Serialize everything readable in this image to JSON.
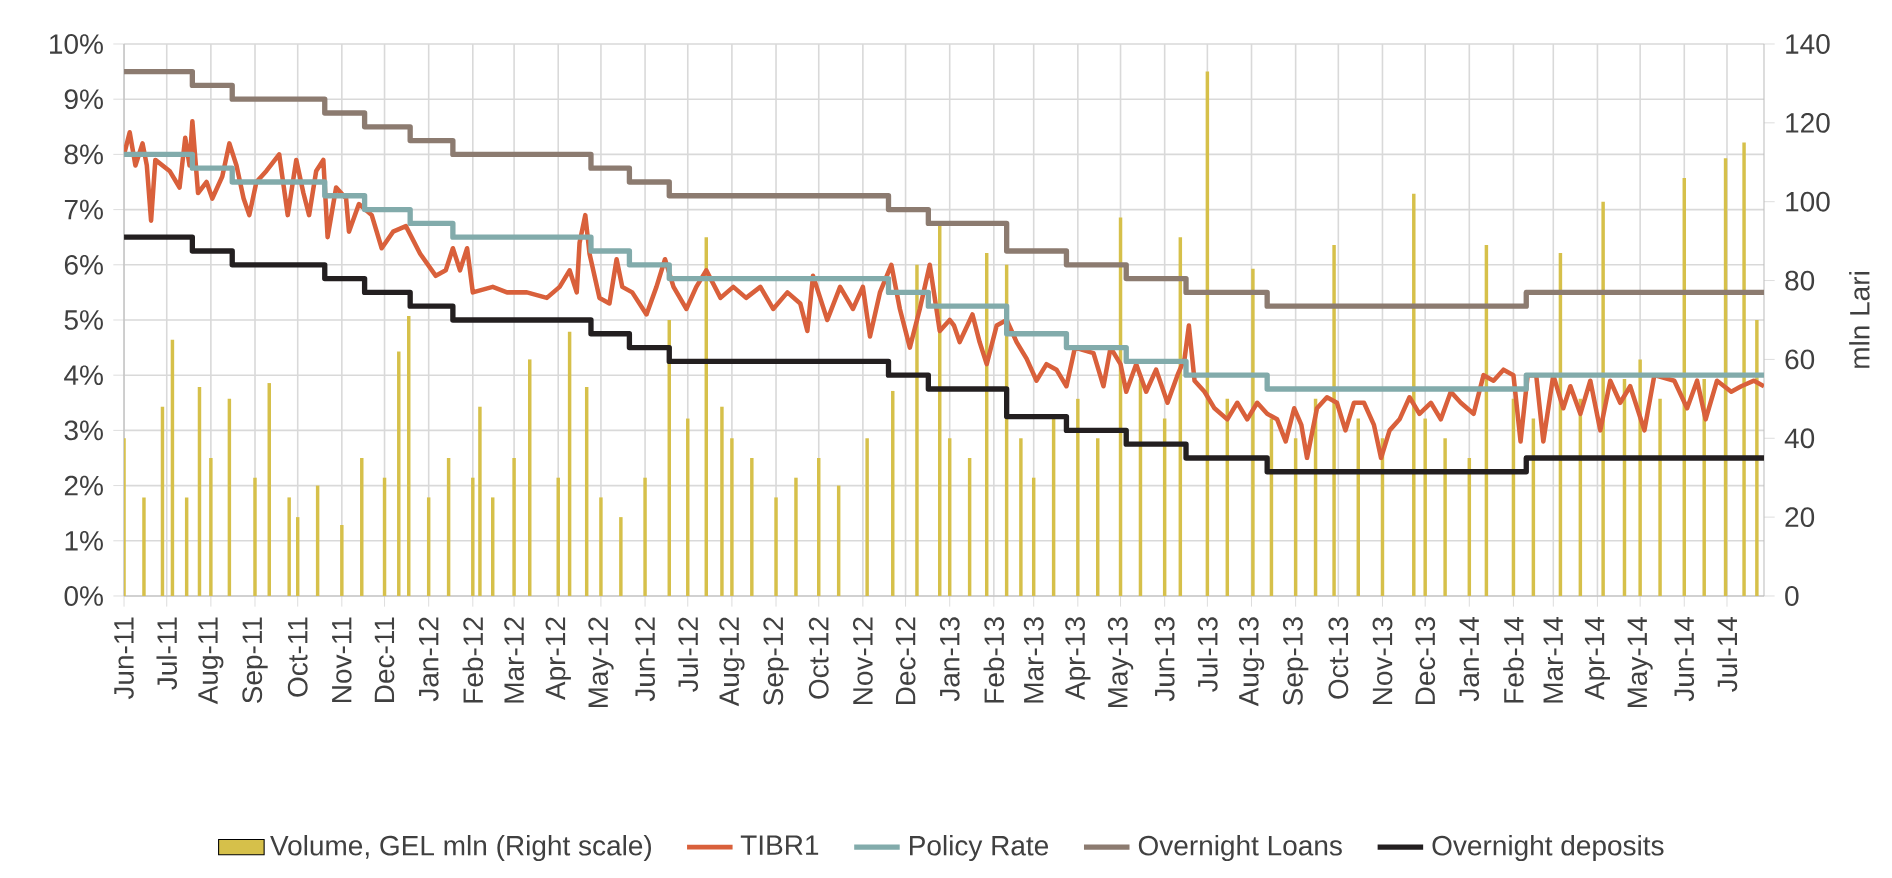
{
  "chart_data": {
    "type": "line",
    "xlim": [
      "2011-06-01",
      "2014-07-27"
    ],
    "xticks": [
      {
        "value": "2011-06-01",
        "label": "Jun-11"
      },
      {
        "value": "2011-07-01",
        "label": "Jul-11"
      },
      {
        "value": "2011-08-01",
        "label": "Aug-11"
      },
      {
        "value": "2011-09-01",
        "label": "Sep-11"
      },
      {
        "value": "2011-10-01",
        "label": "Oct-11"
      },
      {
        "value": "2011-11-01",
        "label": "Nov-11"
      },
      {
        "value": "2011-12-01",
        "label": "Dec-11"
      },
      {
        "value": "2012-01-01",
        "label": "Jan-12"
      },
      {
        "value": "2012-02-01",
        "label": "Feb-12"
      },
      {
        "value": "2012-03-01",
        "label": "Mar-12"
      },
      {
        "value": "2012-04-01",
        "label": "Apr-12"
      },
      {
        "value": "2012-05-01",
        "label": "May-12"
      },
      {
        "value": "2012-06-01",
        "label": "Jun-12"
      },
      {
        "value": "2012-07-01",
        "label": "Jul-12"
      },
      {
        "value": "2012-08-01",
        "label": "Aug-12"
      },
      {
        "value": "2012-09-01",
        "label": "Sep-12"
      },
      {
        "value": "2012-10-01",
        "label": "Oct-12"
      },
      {
        "value": "2012-11-01",
        "label": "Nov-12"
      },
      {
        "value": "2012-12-01",
        "label": "Dec-12"
      },
      {
        "value": "2013-01-01",
        "label": "Jan-13"
      },
      {
        "value": "2013-02-01",
        "label": "Feb-13"
      },
      {
        "value": "2013-03-01",
        "label": "Mar-13"
      },
      {
        "value": "2013-04-01",
        "label": "Apr-13"
      },
      {
        "value": "2013-05-01",
        "label": "May-13"
      },
      {
        "value": "2013-06-01",
        "label": "Jun-13"
      },
      {
        "value": "2013-07-01",
        "label": "Jul-13"
      },
      {
        "value": "2013-08-01",
        "label": "Aug-13"
      },
      {
        "value": "2013-09-01",
        "label": "Sep-13"
      },
      {
        "value": "2013-10-01",
        "label": "Oct-13"
      },
      {
        "value": "2013-11-01",
        "label": "Nov-13"
      },
      {
        "value": "2013-12-01",
        "label": "Dec-13"
      },
      {
        "value": "2014-01-01",
        "label": "Jan-14"
      },
      {
        "value": "2014-02-01",
        "label": "Feb-14"
      },
      {
        "value": "2014-03-01",
        "label": "Mar-14"
      },
      {
        "value": "2014-04-01",
        "label": "Apr-14"
      },
      {
        "value": "2014-05-01",
        "label": "May-14"
      },
      {
        "value": "2014-06-01",
        "label": "Jun-14"
      },
      {
        "value": "2014-07-01",
        "label": "Jul-14"
      }
    ],
    "ylim": [
      0,
      10
    ],
    "yticks": [
      {
        "value": 0,
        "label": "0%"
      },
      {
        "value": 1,
        "label": "1%"
      },
      {
        "value": 2,
        "label": "2%"
      },
      {
        "value": 3,
        "label": "3%"
      },
      {
        "value": 4,
        "label": "4%"
      },
      {
        "value": 5,
        "label": "5%"
      },
      {
        "value": 6,
        "label": "6%"
      },
      {
        "value": 7,
        "label": "7%"
      },
      {
        "value": 8,
        "label": "8%"
      },
      {
        "value": 9,
        "label": "9%"
      },
      {
        "value": 10,
        "label": "10%"
      }
    ],
    "y2lim": [
      0,
      140
    ],
    "y2ticks": [
      0,
      20,
      40,
      60,
      80,
      100,
      120,
      140
    ],
    "y2label": "mln Lari",
    "grid": true,
    "legend": "bottom",
    "marker": "none",
    "series": [
      {
        "name": "Volume, GEL mln (Right scale)",
        "type": "bar",
        "axis": "y2",
        "color": "#d6c04a",
        "x": [
          "2011-06-01",
          "2011-06-15",
          "2011-06-28",
          "2011-07-05",
          "2011-07-15",
          "2011-07-24",
          "2011-08-01",
          "2011-08-14",
          "2011-09-01",
          "2011-09-11",
          "2011-09-25",
          "2011-10-01",
          "2011-10-15",
          "2011-11-01",
          "2011-11-15",
          "2011-12-01",
          "2011-12-11",
          "2011-12-18",
          "2012-01-01",
          "2012-01-15",
          "2012-02-01",
          "2012-02-06",
          "2012-02-15",
          "2012-03-01",
          "2012-03-12",
          "2012-04-01",
          "2012-04-09",
          "2012-04-21",
          "2012-05-01",
          "2012-05-15",
          "2012-06-01",
          "2012-06-18",
          "2012-07-01",
          "2012-07-14",
          "2012-07-25",
          "2012-08-01",
          "2012-08-15",
          "2012-09-01",
          "2012-09-15",
          "2012-10-01",
          "2012-10-15",
          "2012-11-04",
          "2012-11-22",
          "2012-12-09",
          "2012-12-25",
          "2013-01-01",
          "2013-01-15",
          "2013-01-27",
          "2013-02-10",
          "2013-02-20",
          "2013-03-01",
          "2013-03-15",
          "2013-04-01",
          "2013-04-15",
          "2013-05-01",
          "2013-05-15",
          "2013-06-01",
          "2013-06-12",
          "2013-07-01",
          "2013-07-15",
          "2013-08-02",
          "2013-08-15",
          "2013-09-01",
          "2013-09-15",
          "2013-09-28",
          "2013-10-15",
          "2013-11-01",
          "2013-11-23",
          "2013-12-01",
          "2013-12-15",
          "2014-01-01",
          "2014-01-13",
          "2014-02-01",
          "2014-02-15",
          "2014-03-06",
          "2014-03-20",
          "2014-04-05",
          "2014-04-20",
          "2014-05-01",
          "2014-05-15",
          "2014-06-01",
          "2014-06-15",
          "2014-06-30",
          "2014-07-13",
          "2014-07-22"
        ],
        "values": [
          40,
          25,
          48,
          65,
          25,
          53,
          35,
          50,
          30,
          54,
          25,
          20,
          28,
          18,
          35,
          30,
          62,
          71,
          25,
          35,
          30,
          48,
          25,
          35,
          60,
          30,
          67,
          53,
          25,
          20,
          30,
          70,
          45,
          91,
          48,
          40,
          35,
          25,
          30,
          35,
          28,
          40,
          52,
          84,
          94,
          40,
          35,
          87,
          84,
          40,
          30,
          45,
          50,
          40,
          96,
          55,
          45,
          91,
          133,
          50,
          83,
          45,
          40,
          50,
          89,
          45,
          40,
          102,
          45,
          40,
          35,
          89,
          50,
          45,
          87,
          50,
          100,
          55,
          60,
          50,
          106,
          55,
          111,
          115,
          70
        ]
      },
      {
        "name": "TIBR1",
        "color": "#d9603b",
        "x": [
          "2011-06-01",
          "2011-06-05",
          "2011-06-09",
          "2011-06-14",
          "2011-06-17",
          "2011-06-20",
          "2011-06-23",
          "2011-07-03",
          "2011-07-10",
          "2011-07-14",
          "2011-07-17",
          "2011-07-19",
          "2011-07-23",
          "2011-07-29",
          "2011-08-02",
          "2011-08-09",
          "2011-08-14",
          "2011-08-19",
          "2011-08-24",
          "2011-08-28",
          "2011-09-02",
          "2011-09-09",
          "2011-09-18",
          "2011-09-24",
          "2011-09-30",
          "2011-10-05",
          "2011-10-09",
          "2011-10-14",
          "2011-10-19",
          "2011-10-22",
          "2011-10-28",
          "2011-11-04",
          "2011-11-06",
          "2011-11-13",
          "2011-11-22",
          "2011-11-29",
          "2011-12-07",
          "2011-12-16",
          "2011-12-26",
          "2012-01-06",
          "2012-01-13",
          "2012-01-18",
          "2012-01-23",
          "2012-01-28",
          "2012-02-01",
          "2012-02-15",
          "2012-02-25",
          "2012-03-10",
          "2012-03-24",
          "2012-04-02",
          "2012-04-09",
          "2012-04-14",
          "2012-04-16",
          "2012-04-20",
          "2012-04-23",
          "2012-04-30",
          "2012-05-07",
          "2012-05-12",
          "2012-05-16",
          "2012-05-23",
          "2012-06-02",
          "2012-06-09",
          "2012-06-15",
          "2012-06-21",
          "2012-06-30",
          "2012-07-07",
          "2012-07-14",
          "2012-07-24",
          "2012-08-02",
          "2012-08-11",
          "2012-08-21",
          "2012-08-30",
          "2012-09-09",
          "2012-09-18",
          "2012-09-23",
          "2012-09-27",
          "2012-10-07",
          "2012-10-16",
          "2012-10-25",
          "2012-11-01",
          "2012-11-06",
          "2012-11-13",
          "2012-11-21",
          "2012-11-27",
          "2012-12-04",
          "2012-12-11",
          "2012-12-18",
          "2012-12-25",
          "2013-01-01",
          "2013-01-04",
          "2013-01-08",
          "2013-01-17",
          "2013-01-22",
          "2013-01-27",
          "2013-02-03",
          "2013-02-10",
          "2013-02-17",
          "2013-02-24",
          "2013-03-03",
          "2013-03-10",
          "2013-03-17",
          "2013-03-24",
          "2013-03-30",
          "2013-04-12",
          "2013-04-19",
          "2013-04-24",
          "2013-05-01",
          "2013-05-05",
          "2013-05-12",
          "2013-05-19",
          "2013-05-26",
          "2013-06-03",
          "2013-06-10",
          "2013-06-15",
          "2013-06-18",
          "2013-06-22",
          "2013-06-29",
          "2013-07-06",
          "2013-07-15",
          "2013-07-22",
          "2013-07-29",
          "2013-08-05",
          "2013-08-12",
          "2013-08-19",
          "2013-08-25",
          "2013-08-31",
          "2013-09-05",
          "2013-09-09",
          "2013-09-16",
          "2013-09-23",
          "2013-09-30",
          "2013-10-06",
          "2013-10-12",
          "2013-10-19",
          "2013-10-26",
          "2013-10-31",
          "2013-11-06",
          "2013-11-13",
          "2013-11-20",
          "2013-11-27",
          "2013-12-05",
          "2013-12-12",
          "2013-12-19",
          "2013-12-26",
          "2014-01-04",
          "2014-01-11",
          "2014-01-18",
          "2014-01-25",
          "2014-02-01",
          "2014-02-06",
          "2014-02-11",
          "2014-02-17",
          "2014-02-22",
          "2014-03-01",
          "2014-03-08",
          "2014-03-13",
          "2014-03-20",
          "2014-03-27",
          "2014-04-03",
          "2014-04-10",
          "2014-04-17",
          "2014-04-24",
          "2014-05-04",
          "2014-05-11",
          "2014-05-25",
          "2014-06-03",
          "2014-06-10",
          "2014-06-16",
          "2014-06-24",
          "2014-07-04",
          "2014-07-11",
          "2014-07-20",
          "2014-07-27"
        ],
        "values": [
          8.0,
          8.4,
          7.8,
          8.2,
          7.8,
          6.8,
          7.9,
          7.7,
          7.4,
          8.3,
          7.8,
          8.6,
          7.3,
          7.5,
          7.2,
          7.6,
          8.2,
          7.8,
          7.2,
          6.9,
          7.5,
          7.7,
          8.0,
          6.9,
          7.9,
          7.3,
          6.9,
          7.7,
          7.9,
          6.5,
          7.4,
          7.2,
          6.6,
          7.1,
          6.9,
          6.3,
          6.6,
          6.7,
          6.2,
          5.8,
          5.9,
          6.3,
          5.9,
          6.3,
          5.5,
          5.6,
          5.5,
          5.5,
          5.4,
          5.6,
          5.9,
          5.5,
          6.4,
          6.9,
          6.2,
          5.4,
          5.3,
          6.1,
          5.6,
          5.5,
          5.1,
          5.6,
          6.1,
          5.6,
          5.2,
          5.6,
          5.9,
          5.4,
          5.6,
          5.4,
          5.6,
          5.2,
          5.5,
          5.3,
          4.8,
          5.8,
          5.0,
          5.6,
          5.2,
          5.6,
          4.7,
          5.5,
          6.0,
          5.2,
          4.5,
          5.2,
          6.0,
          4.8,
          5.0,
          4.9,
          4.6,
          5.1,
          4.6,
          4.2,
          4.9,
          5.0,
          4.6,
          4.3,
          3.9,
          4.2,
          4.1,
          3.8,
          4.5,
          4.4,
          3.8,
          4.5,
          4.2,
          3.7,
          4.2,
          3.7,
          4.1,
          3.5,
          4.0,
          4.3,
          4.9,
          3.9,
          3.7,
          3.4,
          3.2,
          3.5,
          3.2,
          3.5,
          3.3,
          3.2,
          2.8,
          3.4,
          3.1,
          2.5,
          3.4,
          3.6,
          3.5,
          3.0,
          3.5,
          3.5,
          3.1,
          2.5,
          3.0,
          3.2,
          3.6,
          3.3,
          3.5,
          3.2,
          3.7,
          3.5,
          3.3,
          4.0,
          3.9,
          4.1,
          4.0,
          2.8,
          4.0,
          4.0,
          2.8,
          4.0,
          3.4,
          3.8,
          3.3,
          3.9,
          3.0,
          3.9,
          3.5,
          3.8,
          3.0,
          4.0,
          3.9,
          3.4,
          3.9,
          3.2,
          3.9,
          3.7,
          3.8,
          3.9,
          3.8
        ]
      },
      {
        "name": "Policy Rate",
        "type": "step",
        "color": "#82abab",
        "x": [
          "2011-06-01",
          "2011-07-19",
          "2011-08-16",
          "2011-10-20",
          "2011-11-17",
          "2011-12-19",
          "2012-01-18",
          "2012-04-24",
          "2012-05-21",
          "2012-06-18",
          "2012-11-19",
          "2012-12-17",
          "2013-02-10",
          "2013-03-24",
          "2013-05-05",
          "2013-06-16",
          "2013-08-12",
          "2014-02-10",
          "2014-07-27"
        ],
        "values": [
          8.0,
          7.75,
          7.5,
          7.25,
          7.0,
          6.75,
          6.5,
          6.25,
          6.0,
          5.75,
          5.5,
          5.25,
          4.75,
          4.5,
          4.25,
          4.0,
          3.75,
          4.0,
          4.0
        ]
      },
      {
        "name": "Overnight Loans",
        "type": "step",
        "color": "#8c7b70",
        "x": [
          "2011-06-01",
          "2011-07-19",
          "2011-08-16",
          "2011-10-20",
          "2011-11-17",
          "2011-12-19",
          "2012-01-18",
          "2012-04-24",
          "2012-05-21",
          "2012-06-18",
          "2012-11-19",
          "2012-12-17",
          "2013-02-10",
          "2013-03-24",
          "2013-05-05",
          "2013-06-16",
          "2013-08-12",
          "2014-02-10",
          "2014-07-27"
        ],
        "values": [
          9.5,
          9.25,
          9.0,
          8.75,
          8.5,
          8.25,
          8.0,
          7.75,
          7.5,
          7.25,
          7.0,
          6.75,
          6.25,
          6.0,
          5.75,
          5.5,
          5.25,
          5.5,
          5.5
        ]
      },
      {
        "name": "Overnight deposits",
        "type": "step",
        "color": "#231f20",
        "x": [
          "2011-06-01",
          "2011-07-19",
          "2011-08-16",
          "2011-10-20",
          "2011-11-17",
          "2011-12-19",
          "2012-01-18",
          "2012-04-24",
          "2012-05-21",
          "2012-06-18",
          "2012-11-19",
          "2012-12-17",
          "2013-02-10",
          "2013-03-24",
          "2013-05-05",
          "2013-06-16",
          "2013-08-12",
          "2014-02-10",
          "2014-07-27"
        ],
        "values": [
          6.5,
          6.25,
          6.0,
          5.75,
          5.5,
          5.25,
          5.0,
          4.75,
          4.5,
          4.25,
          4.0,
          3.75,
          3.25,
          3.0,
          2.75,
          2.5,
          2.25,
          2.5,
          2.5
        ]
      }
    ]
  }
}
